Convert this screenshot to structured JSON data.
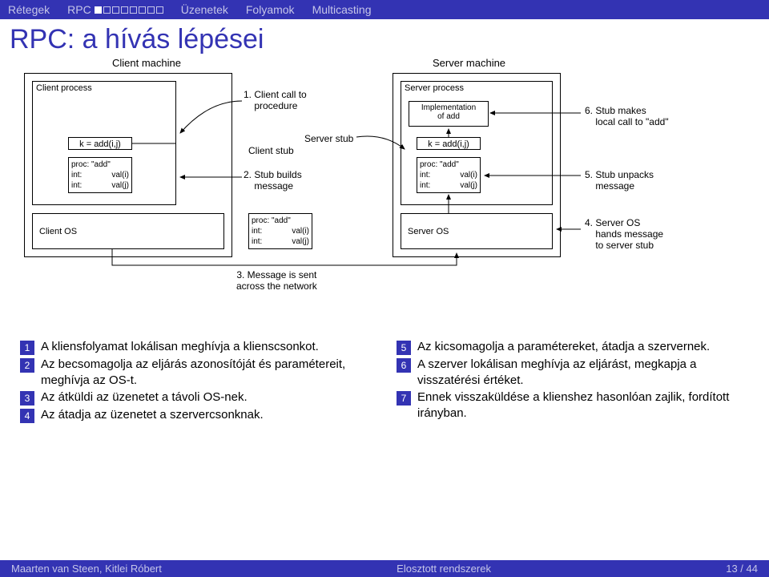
{
  "nav": {
    "items": [
      "Rétegek",
      "RPC",
      "Üzenetek",
      "Folyamok",
      "Multicasting"
    ],
    "rpc_index": 1,
    "progress_filled": 1,
    "progress_total": 8
  },
  "title": "RPC: a hívás lépései",
  "diagram": {
    "client_machine": "Client machine",
    "server_machine": "Server machine",
    "client_process": "Client process",
    "server_process": "Server process",
    "client_os": "Client OS",
    "server_os": "Server OS",
    "k_eq": "k = add(i,j)",
    "impl": "Implementation\nof add",
    "client_stub": "Client stub",
    "server_stub": "Server stub",
    "proc": {
      "h": "proc: \"add\"",
      "r1a": "int:",
      "r1b": "val(i)",
      "r2a": "int:",
      "r2b": "val(j)"
    },
    "notes": {
      "n1": "1. Client call to\n    procedure",
      "n2": "2. Stub builds\n    message",
      "n3": "3. Message is sent\nacross the network",
      "n4": "4. Server OS\n    hands message\n    to server stub",
      "n5": "5. Stub unpacks\n    message",
      "n6": "6. Stub makes\n    local call to \"add\""
    },
    "colors": {
      "line": "#000000"
    }
  },
  "steps": {
    "left": [
      "A kliensfolyamat lokálisan meghívja a klienscsonkot.",
      "Az becsomagolja az eljárás azonosítóját és paramétereit, meghívja az OS-t.",
      "Az átküldi az üzenetet a távoli OS-nek.",
      "Az átadja az üzenetet a szervercsonknak."
    ],
    "right": [
      "Az kicsomagolja a paramétereket, átadja a szervernek.",
      "A szerver lokálisan meghívja az eljárást, megkapja a visszatérési értéket.",
      "Ennek visszaküldése a klienshez hasonlóan zajlik, fordított irányban."
    ]
  },
  "footer": {
    "left": "Maarten van Steen, Kitlei Róbert",
    "center": "Elosztott rendszerek",
    "right": "13 / 44"
  }
}
